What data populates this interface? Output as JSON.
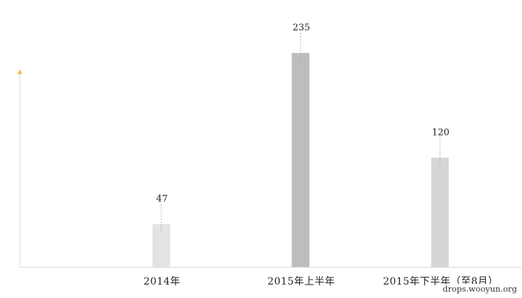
{
  "chart_data": {
    "type": "bar",
    "categories": [
      "2014年",
      "2015年上半年",
      "2015年下半年（至8月）"
    ],
    "values": [
      47,
      235,
      120
    ],
    "data_labels": [
      "47",
      "235",
      "120"
    ],
    "title": "",
    "xlabel": "",
    "ylabel": "",
    "ylim": [
      0,
      277
    ],
    "grid": false,
    "legend": "none",
    "colors": {
      "bars": [
        "#e3e3e3",
        "#bdbdbd",
        "#d6d6d6"
      ],
      "axis": "#d9d9d9",
      "axis_arrow": "#f5b342",
      "leader_line": "#9a9a9a"
    }
  },
  "watermark": "drops.wooyun.org"
}
